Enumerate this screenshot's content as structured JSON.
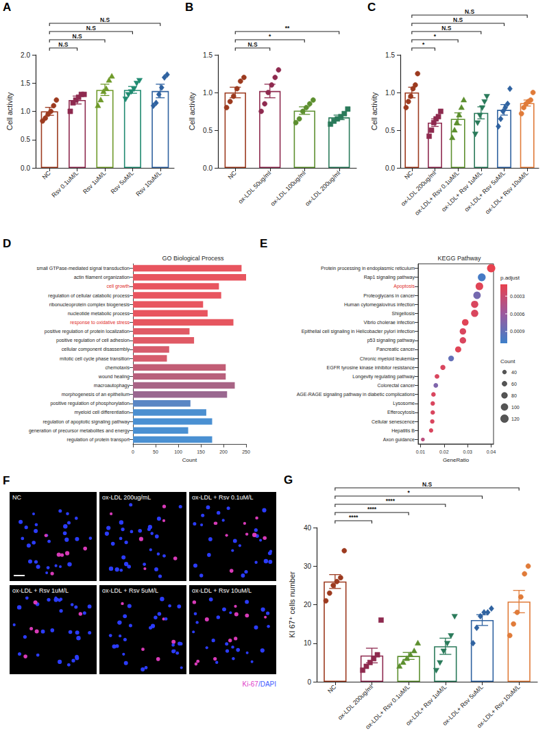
{
  "chart_data": [
    {
      "panel": "A",
      "type": "bar",
      "categories": [
        "NC",
        "Rsv 0.1uM/L",
        "Rsv 1uM/L",
        "Rsv 5uM/L",
        "Rsv 10uM/L"
      ],
      "values": [
        1.0,
        1.2,
        1.38,
        1.38,
        1.36
      ],
      "errors": [
        0.07,
        0.07,
        0.1,
        0.06,
        0.12
      ],
      "points": [
        [
          0.83,
          0.88,
          0.95,
          1.0,
          1.1,
          1.2
        ],
        [
          1.0,
          1.15,
          1.2,
          1.25,
          1.3,
          1.3
        ],
        [
          1.1,
          1.2,
          1.35,
          1.4,
          1.55,
          1.62
        ],
        [
          1.22,
          1.3,
          1.35,
          1.4,
          1.5,
          1.55
        ],
        [
          1.1,
          1.15,
          1.3,
          1.42,
          1.6,
          1.65
        ]
      ],
      "colors": [
        "#9c3a1f",
        "#8e2a4f",
        "#6f9a2a",
        "#1f8a70",
        "#2f62a0"
      ],
      "markers": [
        "circle",
        "square",
        "triangle",
        "triangle-down",
        "diamond"
      ],
      "y_label": "Cell activity",
      "ylim": [
        0,
        2
      ],
      "yticks": [
        {
          "value": 0,
          "label": "0.0"
        },
        0.5,
        {
          "value": 1,
          "label": "1.0"
        },
        1.5,
        {
          "value": 2,
          "label": "2.0"
        }
      ],
      "grid": false,
      "comparisons": [
        {
          "groups": [
            "NC",
            "Rsv 0.1uM/L"
          ],
          "label": "N.S"
        },
        {
          "groups": [
            "NC",
            "Rsv 1uM/L"
          ],
          "label": "N.S"
        },
        {
          "groups": [
            "NC",
            "Rsv 5uM/L"
          ],
          "label": "N.S"
        },
        {
          "groups": [
            "NC",
            "Rsv 10uM/L"
          ],
          "label": "N.S"
        }
      ]
    },
    {
      "panel": "B",
      "type": "bar",
      "categories": [
        "NC",
        "ox-LDL 50ug/ml",
        "ox-LDL 100ug/ml",
        "ox-LDL 200ug/ml"
      ],
      "values": [
        1.0,
        1.02,
        0.76,
        0.67
      ],
      "errors": [
        0.07,
        0.09,
        0.05,
        0.03
      ],
      "points": [
        [
          0.8,
          0.88,
          0.95,
          1.05,
          1.15,
          1.2
        ],
        [
          0.75,
          0.85,
          1.0,
          1.1,
          1.2,
          1.3
        ],
        [
          0.6,
          0.65,
          0.75,
          0.8,
          0.85,
          0.9
        ],
        [
          0.58,
          0.62,
          0.65,
          0.68,
          0.72,
          0.78
        ]
      ],
      "colors": [
        "#9c3a1f",
        "#8e2a4f",
        "#5c8f2e",
        "#2a7a5a"
      ],
      "markers": [
        "circle",
        "circle",
        "circle",
        "square"
      ],
      "y_label": "Cell activity",
      "ylim": [
        0,
        1.5
      ],
      "yticks": [
        {
          "value": 0,
          "label": "0.0"
        },
        0.5,
        {
          "value": 1,
          "label": "1.0"
        },
        1.5
      ],
      "grid": false,
      "comparisons": [
        {
          "groups": [
            "NC",
            "ox-LDL 50ug/ml"
          ],
          "label": "N.S"
        },
        {
          "groups": [
            "NC",
            "ox-LDL 100ug/ml"
          ],
          "label": "*"
        },
        {
          "groups": [
            "NC",
            "ox-LDL 200ug/ml"
          ],
          "label": "**"
        }
      ]
    },
    {
      "panel": "C",
      "type": "bar",
      "categories": [
        "NC",
        "ox-LDL 200ug/ml",
        "ox-LDL+ Rsv 0.1uM/L",
        "ox-LDL+ Rsv 1uM/L",
        "ox-LDL+ Rsv 5uM/L",
        "ox-LDL+ Rsv 10uM/L"
      ],
      "values": [
        1.0,
        0.6,
        0.65,
        0.73,
        0.77,
        0.86
      ],
      "errors": [
        0.07,
        0.05,
        0.08,
        0.08,
        0.07,
        0.04
      ],
      "points": [
        [
          0.8,
          0.88,
          0.95,
          1.05,
          1.1,
          1.25
        ],
        [
          0.42,
          0.5,
          0.6,
          0.65,
          0.68,
          0.75
        ],
        [
          0.4,
          0.5,
          0.6,
          0.7,
          0.8,
          0.9
        ],
        [
          0.45,
          0.6,
          0.7,
          0.8,
          0.88,
          0.95
        ],
        [
          0.55,
          0.65,
          0.75,
          0.8,
          0.85,
          1.05
        ],
        [
          0.72,
          0.8,
          0.85,
          0.88,
          0.9,
          1.0
        ]
      ],
      "colors": [
        "#9c3a1f",
        "#8e2a4f",
        "#5c8f2e",
        "#2a7a5a",
        "#2f62a0",
        "#e07b39"
      ],
      "markers": [
        "circle",
        "square",
        "triangle",
        "triangle-down",
        "diamond",
        "circle"
      ],
      "y_label": "Cell activity",
      "ylim": [
        0,
        1.5
      ],
      "yticks": [
        {
          "value": 0,
          "label": "0.0"
        },
        0.5,
        {
          "value": 1,
          "label": "1.0"
        },
        1.5
      ],
      "grid": false,
      "comparisons": [
        {
          "groups": [
            "NC",
            "ox-LDL 200ug/ml"
          ],
          "label": "*"
        },
        {
          "groups": [
            "NC",
            "ox-LDL+ Rsv 0.1uM/L"
          ],
          "label": "*"
        },
        {
          "groups": [
            "NC",
            "ox-LDL+ Rsv 1uM/L"
          ],
          "label": "N.S"
        },
        {
          "groups": [
            "NC",
            "ox-LDL+ Rsv 5uM/L"
          ],
          "label": "N.S"
        },
        {
          "groups": [
            "NC",
            "ox-LDL+ Rsv 10uM/L"
          ],
          "label": "N.S"
        }
      ]
    },
    {
      "panel": "D",
      "type": "bar",
      "orientation": "horizontal",
      "title": "GO Biological Process",
      "x_label": "Count",
      "categories": [
        "small GTPase-mediated signal transduction",
        "actin filament organization",
        "cell growth",
        "regulation of cellular catabolic process",
        "ribonucleoprotein complex biogenesis",
        "nucleotide metabolic process",
        "response to oxidative stress",
        "positive regulation of protein localization",
        "positive regulation of cell adhesion",
        "cellular component disassembly",
        "mitotic cell cycle phase transition",
        "chemotaxis",
        "wound healing",
        "macroautophagy",
        "morphogenesis of an epithelium",
        "positive regulation of phosphorylation",
        "myeloid cell differentiation",
        "regulation of apoptotic signaling pathway",
        "generation of precursor metabolites and energy",
        "regulation of protein transport"
      ],
      "values": [
        240,
        250,
        190,
        195,
        155,
        165,
        222,
        125,
        135,
        80,
        75,
        205,
        205,
        225,
        208,
        127,
        162,
        175,
        122,
        175
      ],
      "colors": [
        "#e8555f",
        "#e8555f",
        "#e8555f",
        "#e8555f",
        "#e8555f",
        "#e8555f",
        "#e6565f",
        "#e05a65",
        "#e05a65",
        "#d65c6c",
        "#d65c6c",
        "#c25d75",
        "#b8607c",
        "#a86485",
        "#9a6890",
        "#5a86c4",
        "#4b8fd0",
        "#4a90d2",
        "#4a90d2",
        "#4a90d2"
      ],
      "highlighted": [
        "cell growth",
        "response to oxidative stress"
      ],
      "xlim": [
        0,
        250
      ],
      "xticks": [
        0,
        50,
        100,
        150,
        200,
        250
      ],
      "grid": false
    },
    {
      "panel": "E",
      "type": "scatter",
      "title": "KEGG Pathway",
      "x_label": "GeneRatio",
      "categories": [
        "Protein processing in endoplasmic reticulum",
        "Rap1 signaling pathway",
        "Apoptosis",
        "Proteoglycans in cancer",
        "Human cytomegalovirus infection",
        "Shigellosis",
        "Vibrio cholerae infection",
        "Epithelial cell signaling in Helicobacter pylori infection",
        "p53 signaling pathway",
        "Pancreatic cancer",
        "Chronic myeloid leukemia",
        "EGFR tyrosine kinase inhibitor resistance",
        "Longevity regulating pathway",
        "Colorectal cancer",
        "AGE-RAGE signaling pathway in diabetic complications",
        "Lysosome",
        "Efferocytosis",
        "Cellular senescence",
        "Hepatitis B",
        "Axon guidance"
      ],
      "values": [
        0.04,
        0.036,
        0.035,
        0.034,
        0.033,
        0.033,
        0.029,
        0.028,
        0.028,
        0.026,
        0.023,
        0.0195,
        0.017,
        0.0165,
        0.0155,
        0.0152,
        0.0152,
        0.015,
        0.0145,
        0.011
      ],
      "counts": [
        130,
        120,
        115,
        112,
        108,
        108,
        95,
        92,
        92,
        85,
        75,
        64,
        56,
        54,
        51,
        50,
        50,
        49,
        47,
        36
      ],
      "p_adjust": [
        0.0001,
        0.00105,
        0.00015,
        0.0008,
        0.0002,
        0.0002,
        0.00015,
        0.0002,
        0.0002,
        0.00015,
        0.0009,
        0.0002,
        0.0002,
        0.00075,
        0.0002,
        0.0002,
        0.0002,
        0.0002,
        0.0002,
        0.0004
      ],
      "highlighted": [
        "Apoptosis"
      ],
      "xlim": [
        0.009,
        0.041
      ],
      "xticks": [
        0.01,
        0.02,
        0.03,
        0.04
      ],
      "color_title": "p.adjust",
      "color_range": [
        0.0001,
        0.0011
      ],
      "color_ticks": [
        0.0003,
        0.0006,
        0.0009
      ],
      "size_title": "Count",
      "size_ticks": [
        40,
        60,
        80,
        100,
        120
      ],
      "grid": false
    },
    {
      "panel": "G",
      "type": "bar",
      "categories": [
        "NC",
        "ox-LDL 200ug/ml",
        "ox-LDL+ Rsv 0.1uM/L",
        "ox-LDL+ Rsv 1uM/L",
        "ox-LDL+ Rsv 5uM/L",
        "ox-LDL+ Rsv 10uM/L"
      ],
      "values": [
        26,
        6.8,
        6.7,
        9.2,
        16,
        20.8
      ],
      "errors": [
        1.8,
        1.9,
        0.9,
        2.1,
        1.4,
        2.9
      ],
      "points": [
        [
          21,
          23,
          25,
          26,
          27,
          34
        ],
        [
          3,
          4,
          5,
          6,
          7,
          16
        ],
        [
          4,
          5,
          6,
          7,
          8,
          10
        ],
        [
          3,
          5,
          8,
          10,
          12,
          17
        ],
        [
          10,
          14,
          17,
          18,
          18,
          19
        ],
        [
          12,
          15,
          18,
          22,
          28,
          30
        ]
      ],
      "colors": [
        "#9c3a1f",
        "#8e2a4f",
        "#5c8f2e",
        "#2a7a5a",
        "#2f62a0",
        "#e07b39"
      ],
      "markers": [
        "circle",
        "square",
        "triangle",
        "triangle-down",
        "diamond",
        "circle"
      ],
      "y_label": "KI 67⁺ cells number",
      "ylim": [
        0,
        40
      ],
      "yticks": [
        0,
        10,
        20,
        30,
        40
      ],
      "grid": false,
      "comparisons": [
        {
          "groups": [
            "NC",
            "ox-LDL 200ug/ml"
          ],
          "label": "****"
        },
        {
          "groups": [
            "NC",
            "ox-LDL+ Rsv 0.1uM/L"
          ],
          "label": "****"
        },
        {
          "groups": [
            "NC",
            "ox-LDL+ Rsv 1uM/L"
          ],
          "label": "****"
        },
        {
          "groups": [
            "NC",
            "ox-LDL+ Rsv 5uM/L"
          ],
          "label": "*"
        },
        {
          "groups": [
            "NC",
            "ox-LDL+ Rsv 10uM/L"
          ],
          "label": "N.S"
        }
      ]
    }
  ],
  "image_panels": {
    "panel": "F",
    "images": [
      "NC",
      "ox-LDL 200ug/mL",
      "ox-LDL + Rsv 0.1uM/L",
      "ox-LDL + Rsv 1uM/L",
      "ox-LDL + Rsv 5uM/L",
      "ox-LDL + Rsv 10uM/L"
    ],
    "stain_labels": [
      {
        "text": "Ki-67",
        "color": "#e040c8"
      },
      {
        "text": "/DAPI",
        "color": "#3f5cff"
      }
    ]
  }
}
